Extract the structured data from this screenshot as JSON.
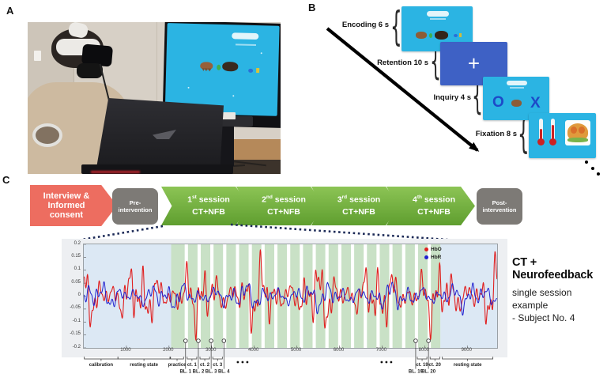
{
  "panels": {
    "a": {
      "label": "A"
    },
    "b": {
      "label": "B",
      "steps": [
        {
          "label": "Encoding 6 s"
        },
        {
          "label": "Retention 10 s"
        },
        {
          "label": "Inquiry 4 s"
        },
        {
          "label": "Fixation 8 s"
        }
      ]
    },
    "c": {
      "label": "C",
      "flow": {
        "start_lines": [
          "Interview &",
          "Informed",
          "consent"
        ],
        "pre_lines": [
          "Pre-",
          "intervention"
        ],
        "sessions": [
          {
            "ordinal": "1",
            "suffix": "st",
            "word": "session",
            "line2": "CT+NFB"
          },
          {
            "ordinal": "2",
            "suffix": "nd",
            "word": "session",
            "line2": "CT+NFB"
          },
          {
            "ordinal": "3",
            "suffix": "rd",
            "word": "session",
            "line2": "CT+NFB"
          },
          {
            "ordinal": "4",
            "suffix": "th",
            "word": "session",
            "line2": "CT+NFB"
          }
        ],
        "post_lines": [
          "Post-",
          "intervention"
        ]
      },
      "caption": {
        "title": "CT + Neurofeedback",
        "subtitle": "single session example",
        "subject": "- Subject No. 4"
      }
    }
  },
  "colors": {
    "screen_cyan": "#2bb4e3",
    "retention_blue": "#3e61c5",
    "flow_red": "#ed6d60",
    "flow_gray": "#7d7a76",
    "flow_green_light": "#8cc455",
    "flow_green_dark": "#5f9e2f",
    "dotted_navy": "#1c2a57"
  },
  "chart_data": {
    "type": "line",
    "title": "",
    "xlabel": "",
    "ylabel": "",
    "xlim": [
      0,
      9700
    ],
    "ylim": [
      -0.2,
      0.2
    ],
    "x_ticks": [
      1000,
      2000,
      3000,
      4000,
      5000,
      6000,
      7000,
      8000,
      9000
    ],
    "y_ticks": [
      "0.2",
      "0.15",
      "0.1",
      "0.05",
      "0",
      "-0.05",
      "-0.1",
      "-0.15",
      "-0.2"
    ],
    "grid": false,
    "legend_position": "top-right",
    "legend": [
      {
        "name": "HbO",
        "color": "#e01f1f"
      },
      {
        "name": "HbR",
        "color": "#2020cf"
      }
    ],
    "region_colors": {
      "rest": "#dce8f4",
      "task": "#c9e1c6",
      "baseline": "#ffffff"
    },
    "regions": {
      "rest_pre": {
        "t0": 0,
        "t1": 2050
      },
      "practice": {
        "t0": 2050,
        "t1": 2370
      },
      "blocks": {
        "count": 20,
        "start": 2370,
        "baseline_dur": 75,
        "task_dur": 225
      },
      "rest_post": {
        "t0": 8370,
        "t1": 9700
      }
    },
    "phases": [
      {
        "label": "calibration",
        "t0": 30,
        "t1": 820
      },
      {
        "label": "resting state",
        "t0": 820,
        "t1": 2040
      },
      {
        "label": "practice",
        "t0": 2055,
        "t1": 2360
      },
      {
        "label": "ct. 1",
        "t0": 2445,
        "t1": 2670
      },
      {
        "label": "ct. 2",
        "t0": 2745,
        "t1": 2970
      },
      {
        "label": "ct. 3",
        "t0": 3045,
        "t1": 3270
      },
      {
        "label": "ct. 19",
        "t0": 7845,
        "t1": 8070
      },
      {
        "label": "ct. 20",
        "t0": 8145,
        "t1": 8370
      },
      {
        "label": "resting state",
        "t0": 8430,
        "t1": 9620
      }
    ],
    "baseline_markers": [
      {
        "label": "BL. 1",
        "t": 2407
      },
      {
        "label": "BL. 2",
        "t": 2707
      },
      {
        "label": "BL. 3",
        "t": 3007
      },
      {
        "label": "BL. 4",
        "t": 3307
      },
      {
        "label": "BL. 19",
        "t": 7807
      },
      {
        "label": "BL. 20",
        "t": 8107
      }
    ],
    "ellipses_t": [
      3745,
      7120
    ],
    "series": [
      {
        "name": "HbO",
        "color": "#e01f1f",
        "width": 1.1,
        "base_amp": 0.075,
        "mod": {
          "depth": 0.55,
          "period": 1400,
          "phase": 2.0
        },
        "components": [
          {
            "amp": 0.55,
            "period": 345,
            "phase": 1.3
          },
          {
            "amp": 0.45,
            "period": 145,
            "phase": 4.1
          },
          {
            "amp": 0.35,
            "period": 610,
            "phase": 2.2
          },
          {
            "amp": 0.3,
            "period": 86,
            "phase": 0.7
          }
        ]
      },
      {
        "name": "HbR",
        "color": "#2020cf",
        "width": 1.0,
        "base_amp": 0.032,
        "mod": {
          "depth": 0.35,
          "period": 1750,
          "phase": 0.6
        },
        "components": [
          {
            "amp": 0.6,
            "period": 375,
            "phase": 0.2
          },
          {
            "amp": 0.5,
            "period": 170,
            "phase": 2.9
          },
          {
            "amp": 0.4,
            "period": 690,
            "phase": 5.0
          },
          {
            "amp": 0.3,
            "period": 95,
            "phase": 1.1
          }
        ]
      }
    ]
  }
}
